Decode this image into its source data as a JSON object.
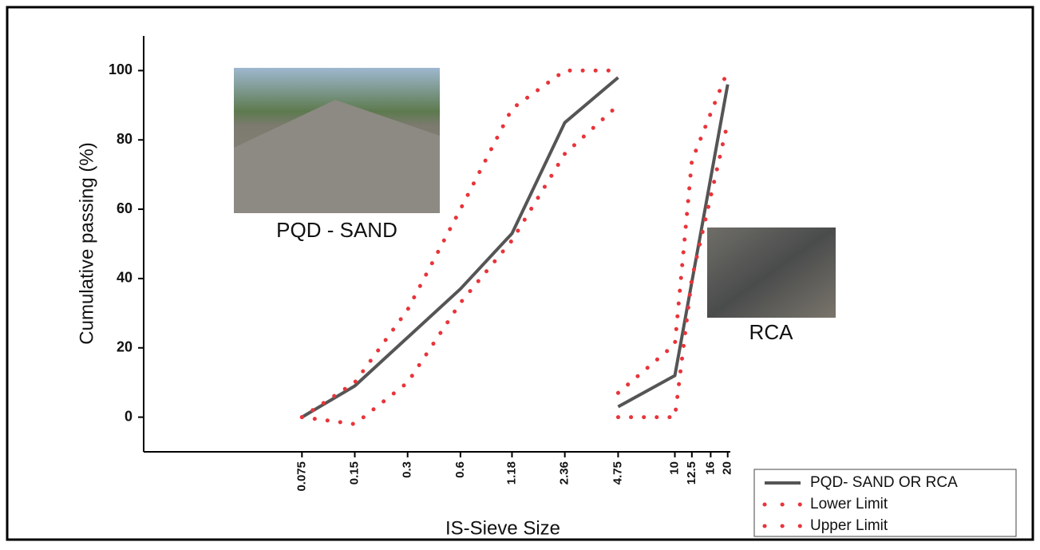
{
  "chart_data": {
    "type": "line",
    "x_label": "IS-Sieve Size",
    "y_label": "Cumulative passing (%)",
    "annotations": [
      "PQD - SAND",
      "RCA"
    ],
    "log_x": true,
    "xlim": [
      0.0094,
      20.7
    ],
    "ylim": [
      -10,
      110
    ],
    "xticks": [
      0.075,
      0.15,
      0.3,
      0.6,
      1.18,
      2.36,
      4.75,
      10,
      12.5,
      16,
      20
    ],
    "yticks": [
      0,
      20,
      40,
      60,
      80,
      100
    ],
    "legend": "bottom-right",
    "series": [
      {
        "name": "PQD- SAND OR RCA",
        "color": "#555555",
        "style": "solid",
        "segments": [
          {
            "x": [
              0.075,
              0.15,
              0.3,
              0.6,
              1.18,
              2.36,
              4.75
            ],
            "values": [
              0,
              9,
              23,
              37,
              53,
              85,
              98
            ]
          },
          {
            "x": [
              4.75,
              10,
              20
            ],
            "values": [
              3,
              12,
              96
            ]
          }
        ]
      },
      {
        "name": "Lower Limit",
        "color": "#e8343a",
        "style": "dotted",
        "segments": [
          {
            "x": [
              0.075,
              0.15,
              0.3,
              0.6,
              1.18,
              2.36,
              4.75
            ],
            "values": [
              0,
              -2,
              10,
              33,
              51,
              76,
              90
            ]
          },
          {
            "x": [
              4.75,
              10,
              12.5,
              20
            ],
            "values": [
              0,
              0,
              40,
              85
            ]
          }
        ]
      },
      {
        "name": "Upper Limit",
        "color": "#e8343a",
        "style": "dotted",
        "segments": [
          {
            "x": [
              0.075,
              0.15,
              0.3,
              0.6,
              1.18,
              2.36,
              4.75
            ],
            "values": [
              0,
              10,
              31,
              60,
              89,
              100,
              100
            ]
          },
          {
            "x": [
              4.75,
              10,
              12.5,
              20
            ],
            "values": [
              7,
              21,
              74,
              100
            ]
          }
        ]
      }
    ]
  }
}
